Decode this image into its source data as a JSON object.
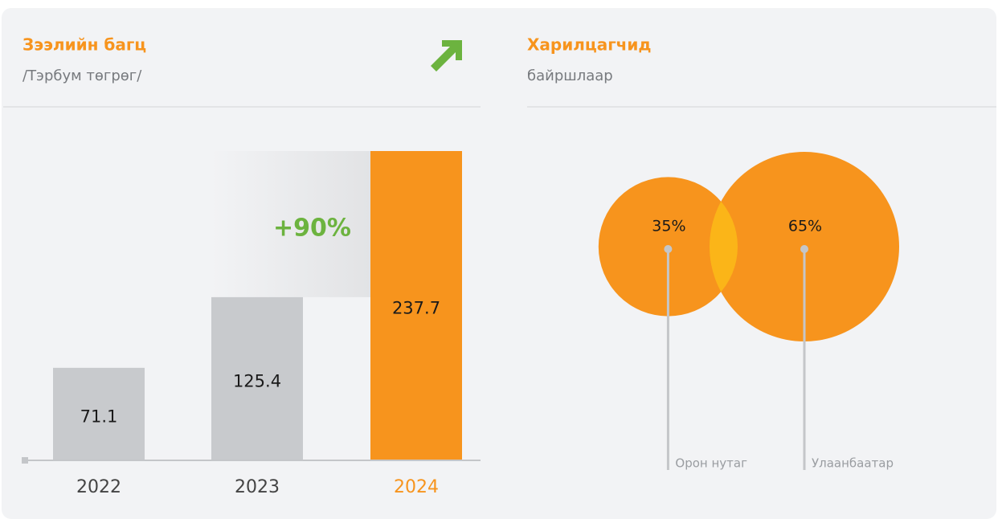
{
  "chart_data": [
    {
      "type": "bar",
      "title": "Зээлийн багц",
      "subtitle": "/Тэрбум төгрөг/",
      "categories": [
        "2022",
        "2023",
        "2024"
      ],
      "values": [
        71.1,
        125.4,
        237.7
      ],
      "colors": [
        "#c8cacd",
        "#c8cacd",
        "#f7941d"
      ],
      "annotation": "+90%",
      "annotation_color": "#6cb33f"
    },
    {
      "type": "bubble",
      "title": "Харилцагчид",
      "subtitle": "байршлаар",
      "categories": [
        "Орон нутаг",
        "Улаанбаатар"
      ],
      "values": [
        35,
        65
      ],
      "value_labels": [
        "35%",
        "65%"
      ],
      "color": "#f7941d",
      "overlap_color": "#fbb518"
    }
  ]
}
